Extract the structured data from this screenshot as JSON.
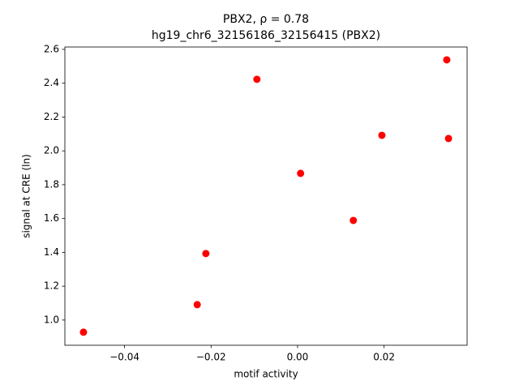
{
  "chart_data": {
    "type": "scatter",
    "title": "PBX2, ρ = 0.78",
    "subtitle": "hg19_chr6_32156186_32156415 (PBX2)",
    "x_label": "motif activity",
    "y_label": "signal at CRE (ln)",
    "color": "#ff0000",
    "x": [
      -0.0495,
      -0.0232,
      -0.0212,
      -0.0094,
      0.0007,
      0.0129,
      0.0195,
      0.0345,
      0.0349
    ],
    "values": [
      0.928,
      1.091,
      1.393,
      2.423,
      1.867,
      1.589,
      2.092,
      2.538,
      2.073
    ],
    "xlim": [
      -0.0538,
      0.0392
    ],
    "ylim": [
      0.851,
      2.614
    ],
    "xticks": [
      {
        "value": -0.04,
        "label": "−0.04"
      },
      {
        "value": -0.02,
        "label": "−0.02"
      },
      {
        "value": 0,
        "label": "0.00"
      },
      {
        "value": 0.02,
        "label": "0.02"
      }
    ],
    "yticks": [
      {
        "value": 1,
        "label": "1.0"
      },
      1.2,
      1.4,
      1.6,
      1.8,
      {
        "value": 2,
        "label": "2.0"
      },
      2.2,
      2.4,
      2.6
    ],
    "grid": false
  }
}
